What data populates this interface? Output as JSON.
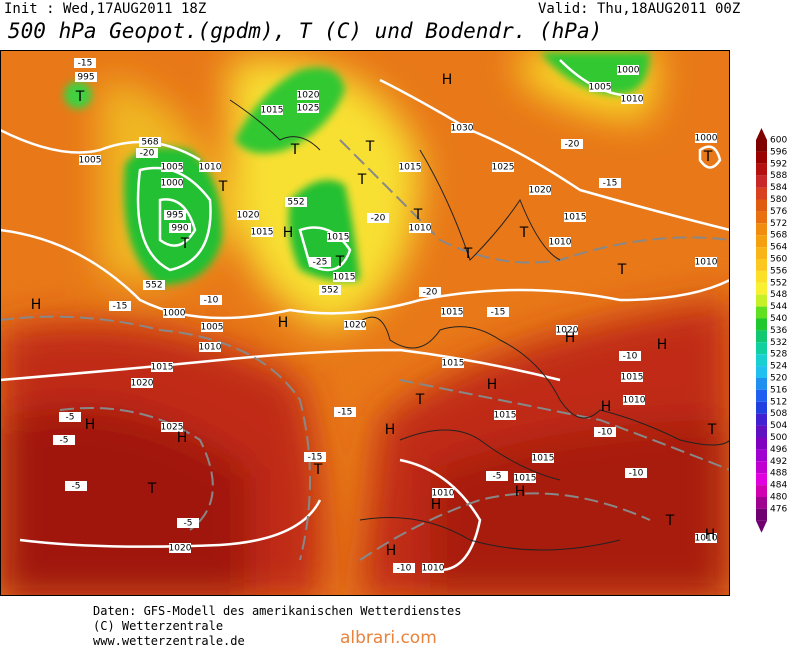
{
  "header": {
    "init": "Init : Wed,17AUG2011 18Z",
    "valid": "Valid: Thu,18AUG2011 00Z",
    "title": "500 hPa Geopot.(gpdm), T (C) und Bodendr. (hPa)"
  },
  "colorbar": {
    "levels": [
      600,
      596,
      592,
      588,
      584,
      580,
      576,
      572,
      568,
      564,
      560,
      556,
      552,
      548,
      544,
      540,
      536,
      532,
      528,
      524,
      520,
      516,
      512,
      508,
      504,
      500,
      496,
      492,
      488,
      484,
      480,
      476
    ],
    "colors": [
      "#800000",
      "#9a0000",
      "#b41010",
      "#c82828",
      "#d84020",
      "#e05a10",
      "#e87010",
      "#f08c10",
      "#f5a010",
      "#f8b418",
      "#fcc820",
      "#fce028",
      "#f8f030",
      "#c8f028",
      "#60e020",
      "#20c830",
      "#10c870",
      "#10d0a0",
      "#18d0d0",
      "#20c0f0",
      "#2090f0",
      "#2060f0",
      "#2040e0",
      "#4020d0",
      "#6010c0",
      "#8000c0",
      "#a000d0",
      "#c000d0",
      "#e000e0",
      "#d000b0",
      "#a00090",
      "#700070"
    ]
  },
  "map": {
    "labels": [
      "995",
      "1005",
      "1000",
      "995",
      "990",
      "1005",
      "1010",
      "1015",
      "1020",
      "1025",
      "1020",
      "1015",
      "1015",
      "1015",
      "1030",
      "1015",
      "1020",
      "1025",
      "1015",
      "1010",
      "1000",
      "1005",
      "1010",
      "1000",
      "1010",
      "1010",
      "1000",
      "1005",
      "1010",
      "1015",
      "1020",
      "1020",
      "1015",
      "1015",
      "1020",
      "1015",
      "1010",
      "1025",
      "1015",
      "1015",
      "1015",
      "1010",
      "1010",
      "1010",
      "1020",
      "-15",
      "-20",
      "-10",
      "-15",
      "-5",
      "-5",
      "-5",
      "-5",
      "-15",
      "-15",
      "-20",
      "-20",
      "-25",
      "-15",
      "-20",
      "-10",
      "-10",
      "-10",
      "-5",
      "-10",
      "-15",
      "T",
      "H",
      "T",
      "T",
      "T",
      "T",
      "H",
      "T",
      "T",
      "T",
      "T",
      "T",
      "T",
      "H",
      "H",
      "T",
      "H",
      "H",
      "H",
      "T",
      "H",
      "H",
      "H",
      "T",
      "T",
      "H",
      "H",
      "T",
      "H",
      "H",
      "H",
      "T",
      "552",
      "552",
      "552",
      "568"
    ]
  },
  "footer": {
    "source": "Daten: GFS-Modell des amerikanischen Wetterdienstes",
    "copyright": "(C) Wetterzentrale",
    "url": "www.wetterzentrale.de",
    "watermark": "albrari.com"
  }
}
